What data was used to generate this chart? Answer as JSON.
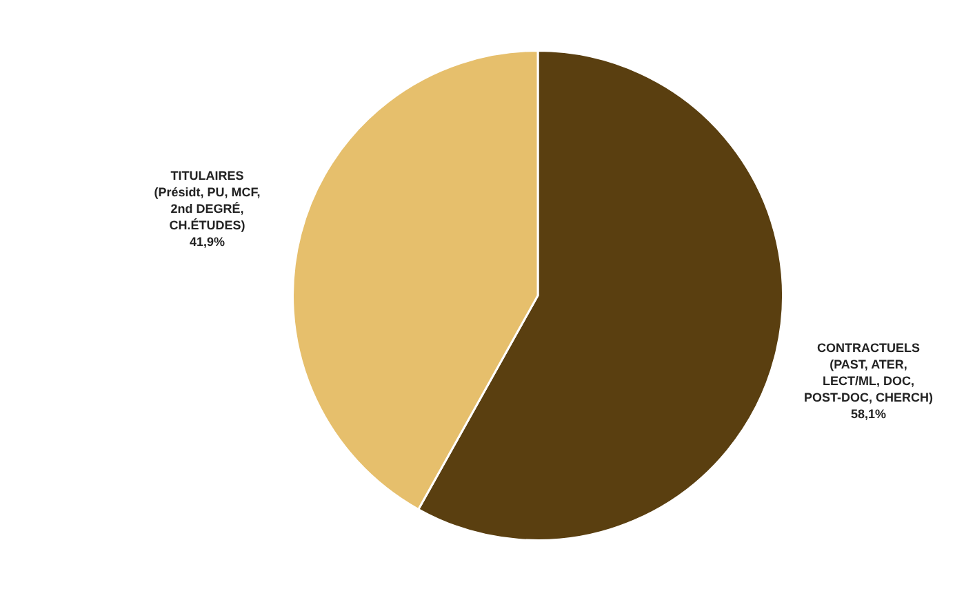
{
  "chart_data": {
    "type": "pie",
    "categories": [
      "CONTRACTUELS (PAST, ATER, LECT/ML, DOC, POST-DOC, CHERCH)",
      "TITULAIRES (Présidt, PU, MCF, 2nd DEGRÉ, CH.ÉTUDES)"
    ],
    "values": [
      58.1,
      41.9
    ],
    "colors": [
      "#5a3f10",
      "#e6bf6c"
    ],
    "value_labels": [
      "58,1%",
      "41,9%"
    ],
    "legend": false
  }
}
